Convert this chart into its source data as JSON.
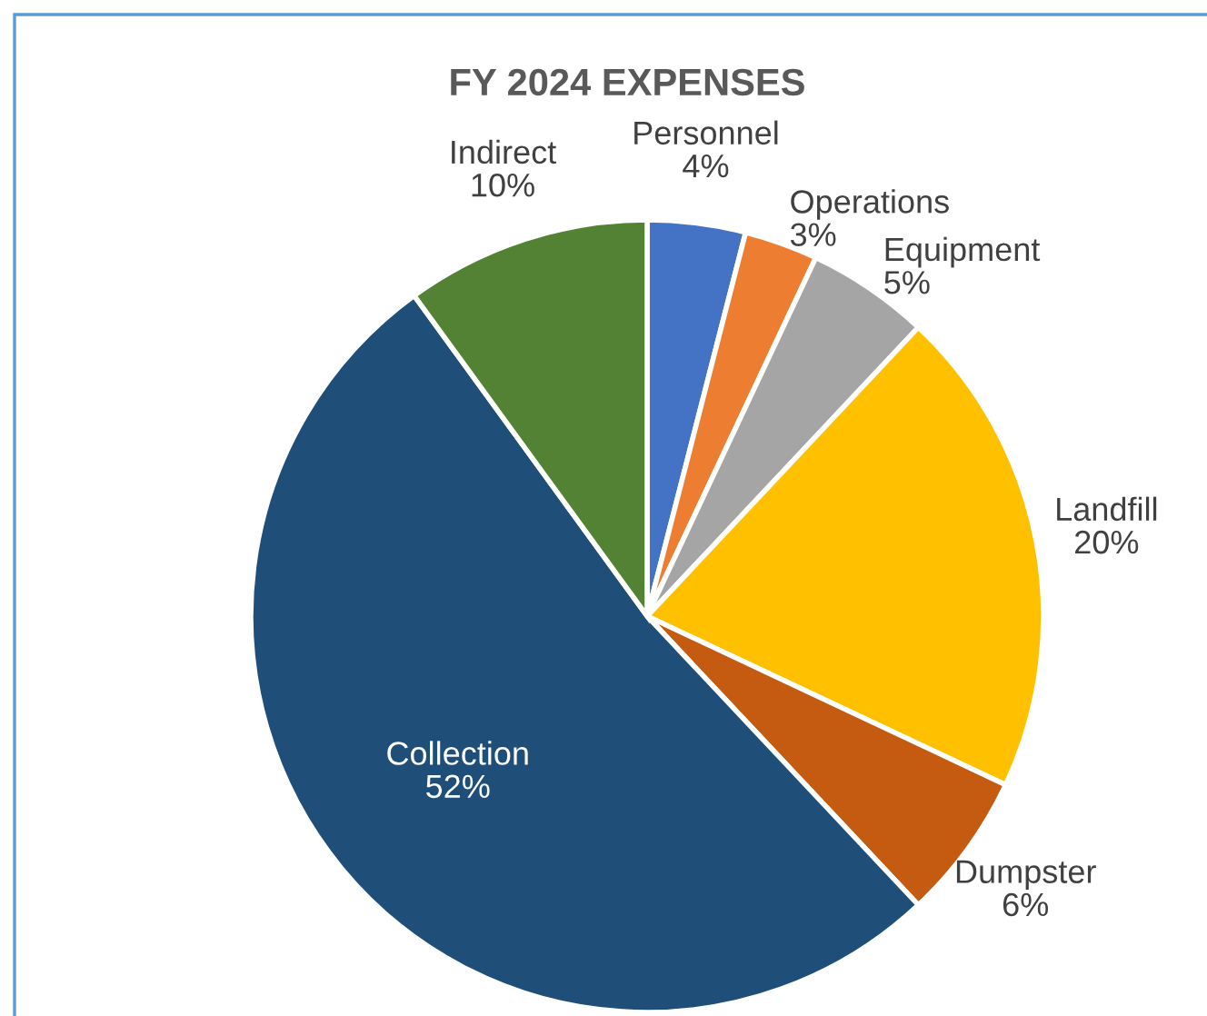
{
  "chart_data": {
    "type": "pie",
    "title": "FY 2024 EXPENSES",
    "categories": [
      "Personnel",
      "Operations",
      "Equipment",
      "Landfill",
      "Dumpster",
      "Collection",
      "Indirect"
    ],
    "values": [
      4,
      3,
      5,
      20,
      6,
      52,
      10
    ],
    "value_labels": [
      "4%",
      "3%",
      "5%",
      "20%",
      "6%",
      "52%",
      "10%"
    ],
    "colors": [
      "#4472c4",
      "#ed7d31",
      "#a5a5a5",
      "#ffc000",
      "#c55a11",
      "#1f4e79",
      "#548235"
    ],
    "legend": false
  }
}
